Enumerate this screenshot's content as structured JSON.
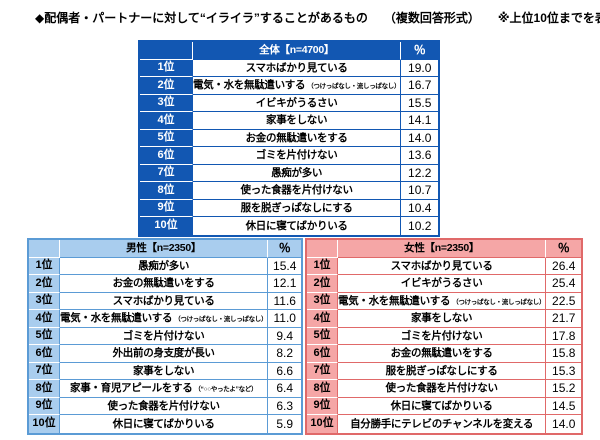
{
  "page": {
    "title_main": "◆配偶者・パートナーに対して“イライラ”することがあるもの",
    "title_format": "（複数回答形式）",
    "title_note": "※上位10位までを表示"
  },
  "colors": {
    "overall_accent": "#1257b2",
    "overall_fill": "#1257b2",
    "male_accent": "#5b9bd5",
    "male_fill": "#a9cdee",
    "female_accent": "#e06969",
    "female_fill": "#f5a6a6"
  },
  "chart_data": [
    {
      "type": "table",
      "group": "overall",
      "title": "全体【n=4700】",
      "percent_label": "％",
      "rows": [
        {
          "rank": 1,
          "label": "1位",
          "item": "スマホばかり見ている",
          "note": "",
          "value": 19.0
        },
        {
          "rank": 2,
          "label": "2位",
          "item": "電気・水を無駄遣いする",
          "note": "（つけっぱなし・流しっぱなし）",
          "value": 16.7
        },
        {
          "rank": 3,
          "label": "3位",
          "item": "イビキがうるさい",
          "note": "",
          "value": 15.5
        },
        {
          "rank": 4,
          "label": "4位",
          "item": "家事をしない",
          "note": "",
          "value": 14.1
        },
        {
          "rank": 5,
          "label": "5位",
          "item": "お金の無駄遣いをする",
          "note": "",
          "value": 14.0
        },
        {
          "rank": 6,
          "label": "6位",
          "item": "ゴミを片付けない",
          "note": "",
          "value": 13.6
        },
        {
          "rank": 7,
          "label": "7位",
          "item": "愚痴が多い",
          "note": "",
          "value": 12.2
        },
        {
          "rank": 8,
          "label": "8位",
          "item": "使った食器を片付けない",
          "note": "",
          "value": 10.7
        },
        {
          "rank": 9,
          "label": "9位",
          "item": "服を脱ぎっぱなしにする",
          "note": "",
          "value": 10.4
        },
        {
          "rank": 10,
          "label": "10位",
          "item": "休日に寝てばかりいる",
          "note": "",
          "value": 10.2
        }
      ]
    },
    {
      "type": "table",
      "group": "male",
      "title": "男性【n=2350】",
      "percent_label": "％",
      "rows": [
        {
          "rank": 1,
          "label": "1位",
          "item": "愚痴が多い",
          "note": "",
          "value": 15.4
        },
        {
          "rank": 2,
          "label": "2位",
          "item": "お金の無駄遣いをする",
          "note": "",
          "value": 12.1
        },
        {
          "rank": 3,
          "label": "3位",
          "item": "スマホばかり見ている",
          "note": "",
          "value": 11.6
        },
        {
          "rank": 4,
          "label": "4位",
          "item": "電気・水を無駄遣いする",
          "note": "（つけっぱなし・流しっぱなし）",
          "value": 11.0
        },
        {
          "rank": 5,
          "label": "5位",
          "item": "ゴミを片付けない",
          "note": "",
          "value": 9.4
        },
        {
          "rank": 6,
          "label": "6位",
          "item": "外出前の身支度が長い",
          "note": "",
          "value": 8.2
        },
        {
          "rank": 7,
          "label": "7位",
          "item": "家事をしない",
          "note": "",
          "value": 6.6
        },
        {
          "rank": 8,
          "label": "8位",
          "item": "家事・育児アピールをする",
          "note": "（“○○やったよ”など）",
          "value": 6.4
        },
        {
          "rank": 9,
          "label": "9位",
          "item": "使った食器を片付けない",
          "note": "",
          "value": 6.3
        },
        {
          "rank": 10,
          "label": "10位",
          "item": "休日に寝てばかりいる",
          "note": "",
          "value": 5.9
        }
      ]
    },
    {
      "type": "table",
      "group": "female",
      "title": "女性【n=2350】",
      "percent_label": "％",
      "rows": [
        {
          "rank": 1,
          "label": "1位",
          "item": "スマホばかり見ている",
          "note": "",
          "value": 26.4
        },
        {
          "rank": 2,
          "label": "2位",
          "item": "イビキがうるさい",
          "note": "",
          "value": 25.4
        },
        {
          "rank": 3,
          "label": "3位",
          "item": "電気・水を無駄遣いする",
          "note": "（つけっぱなし・流しっぱなし）",
          "value": 22.5
        },
        {
          "rank": 4,
          "label": "4位",
          "item": "家事をしない",
          "note": "",
          "value": 21.7
        },
        {
          "rank": 5,
          "label": "5位",
          "item": "ゴミを片付けない",
          "note": "",
          "value": 17.8
        },
        {
          "rank": 6,
          "label": "6位",
          "item": "お金の無駄遣いをする",
          "note": "",
          "value": 15.8
        },
        {
          "rank": 7,
          "label": "7位",
          "item": "服を脱ぎっぱなしにする",
          "note": "",
          "value": 15.3
        },
        {
          "rank": 8,
          "label": "8位",
          "item": "使った食器を片付けない",
          "note": "",
          "value": 15.2
        },
        {
          "rank": 9,
          "label": "9位",
          "item": "休日に寝てばかりいる",
          "note": "",
          "value": 14.5
        },
        {
          "rank": 10,
          "label": "10位",
          "item": "自分勝手にテレビのチャンネルを変える",
          "note": "",
          "value": 14.0
        }
      ]
    }
  ]
}
